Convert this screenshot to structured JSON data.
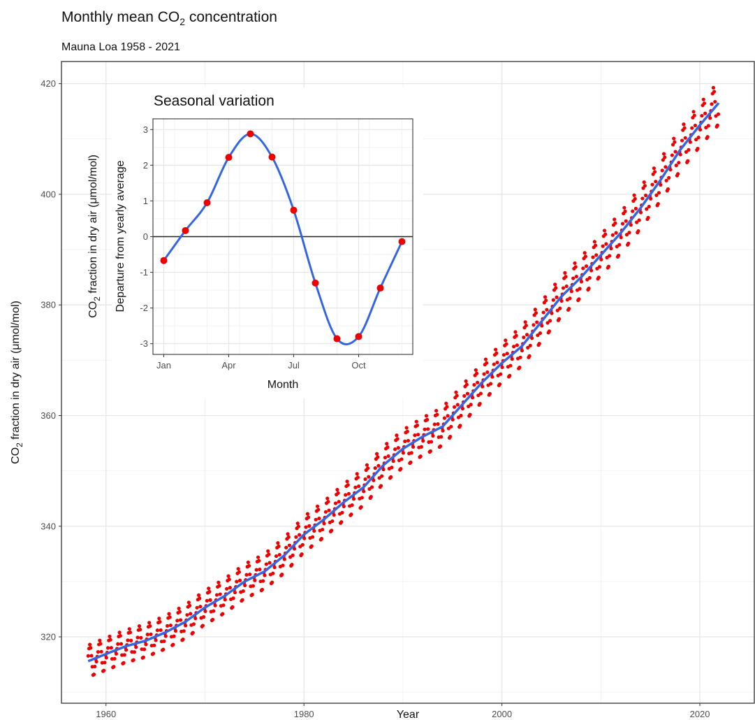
{
  "chart_data": [
    {
      "type": "scatter",
      "title_main": "Monthly mean CO",
      "title_sub": "2",
      "title_end": " concentration",
      "subtitle": "Mauna Loa 1958 - 2021",
      "xlabel": "Year",
      "ylabel_main": "CO",
      "ylabel_sub": "2",
      "ylabel_end": " fraction in dry air (μmol/mol)",
      "xlim": [
        1955.5,
        2025.5
      ],
      "ylim": [
        308,
        424
      ],
      "x_ticks": [
        1960,
        1980,
        2000,
        2020
      ],
      "y_ticks": [
        320,
        340,
        360,
        380,
        400,
        420
      ],
      "grid": true,
      "point_color": "#ee0000",
      "trend_color": "#3366e6",
      "start_year": 1958.2,
      "end_year": 2021.9,
      "trend_knots": [
        [
          1958.2,
          315.6
        ],
        [
          1960,
          316.9
        ],
        [
          1962,
          318.3
        ],
        [
          1964,
          319.3
        ],
        [
          1966,
          320.8
        ],
        [
          1968,
          322.7
        ],
        [
          1970,
          325.3
        ],
        [
          1972,
          327.4
        ],
        [
          1974,
          330.0
        ],
        [
          1976,
          331.8
        ],
        [
          1978,
          334.7
        ],
        [
          1980,
          338.5
        ],
        [
          1982,
          341.2
        ],
        [
          1984,
          344.3
        ],
        [
          1986,
          347.0
        ],
        [
          1988,
          351.0
        ],
        [
          1990,
          354.0
        ],
        [
          1992,
          356.2
        ],
        [
          1994,
          358.0
        ],
        [
          1996,
          362.0
        ],
        [
          1998,
          366.0
        ],
        [
          2000,
          369.5
        ],
        [
          2002,
          372.5
        ],
        [
          2004,
          377.0
        ],
        [
          2006,
          381.5
        ],
        [
          2008,
          385.0
        ],
        [
          2010,
          389.0
        ],
        [
          2012,
          393.0
        ],
        [
          2014,
          397.5
        ],
        [
          2016,
          402.5
        ],
        [
          2018,
          408.0
        ],
        [
          2020,
          412.5
        ],
        [
          2021.9,
          416.5
        ]
      ]
    },
    {
      "type": "line",
      "title": "Seasonal variation",
      "xlabel": "Month",
      "ylabel_main": "CO",
      "ylabel_sub": "2",
      "ylabel_end": " fraction in dry air (μmol/mol)",
      "ylabel2": "Departure from yearly average",
      "x_ticks": [
        {
          "month": 1,
          "label": "Jan"
        },
        {
          "month": 4,
          "label": "Apr"
        },
        {
          "month": 7,
          "label": "Jul"
        },
        {
          "month": 10,
          "label": "Oct"
        }
      ],
      "y_ticks": [
        -3,
        -2,
        -1,
        0,
        1,
        2,
        3
      ],
      "xlim": [
        0.5,
        12.5
      ],
      "ylim": [
        -3.3,
        3.3
      ],
      "grid": true,
      "months": [
        1,
        2,
        3,
        4,
        5,
        6,
        7,
        8,
        9,
        10,
        11,
        12
      ],
      "values": [
        -0.67,
        0.17,
        0.95,
        2.22,
        2.88,
        2.23,
        0.74,
        -1.3,
        -2.86,
        -2.8,
        -1.44,
        -0.14
      ],
      "point_color": "#ee0000",
      "curve_color": "#3366e6"
    }
  ]
}
